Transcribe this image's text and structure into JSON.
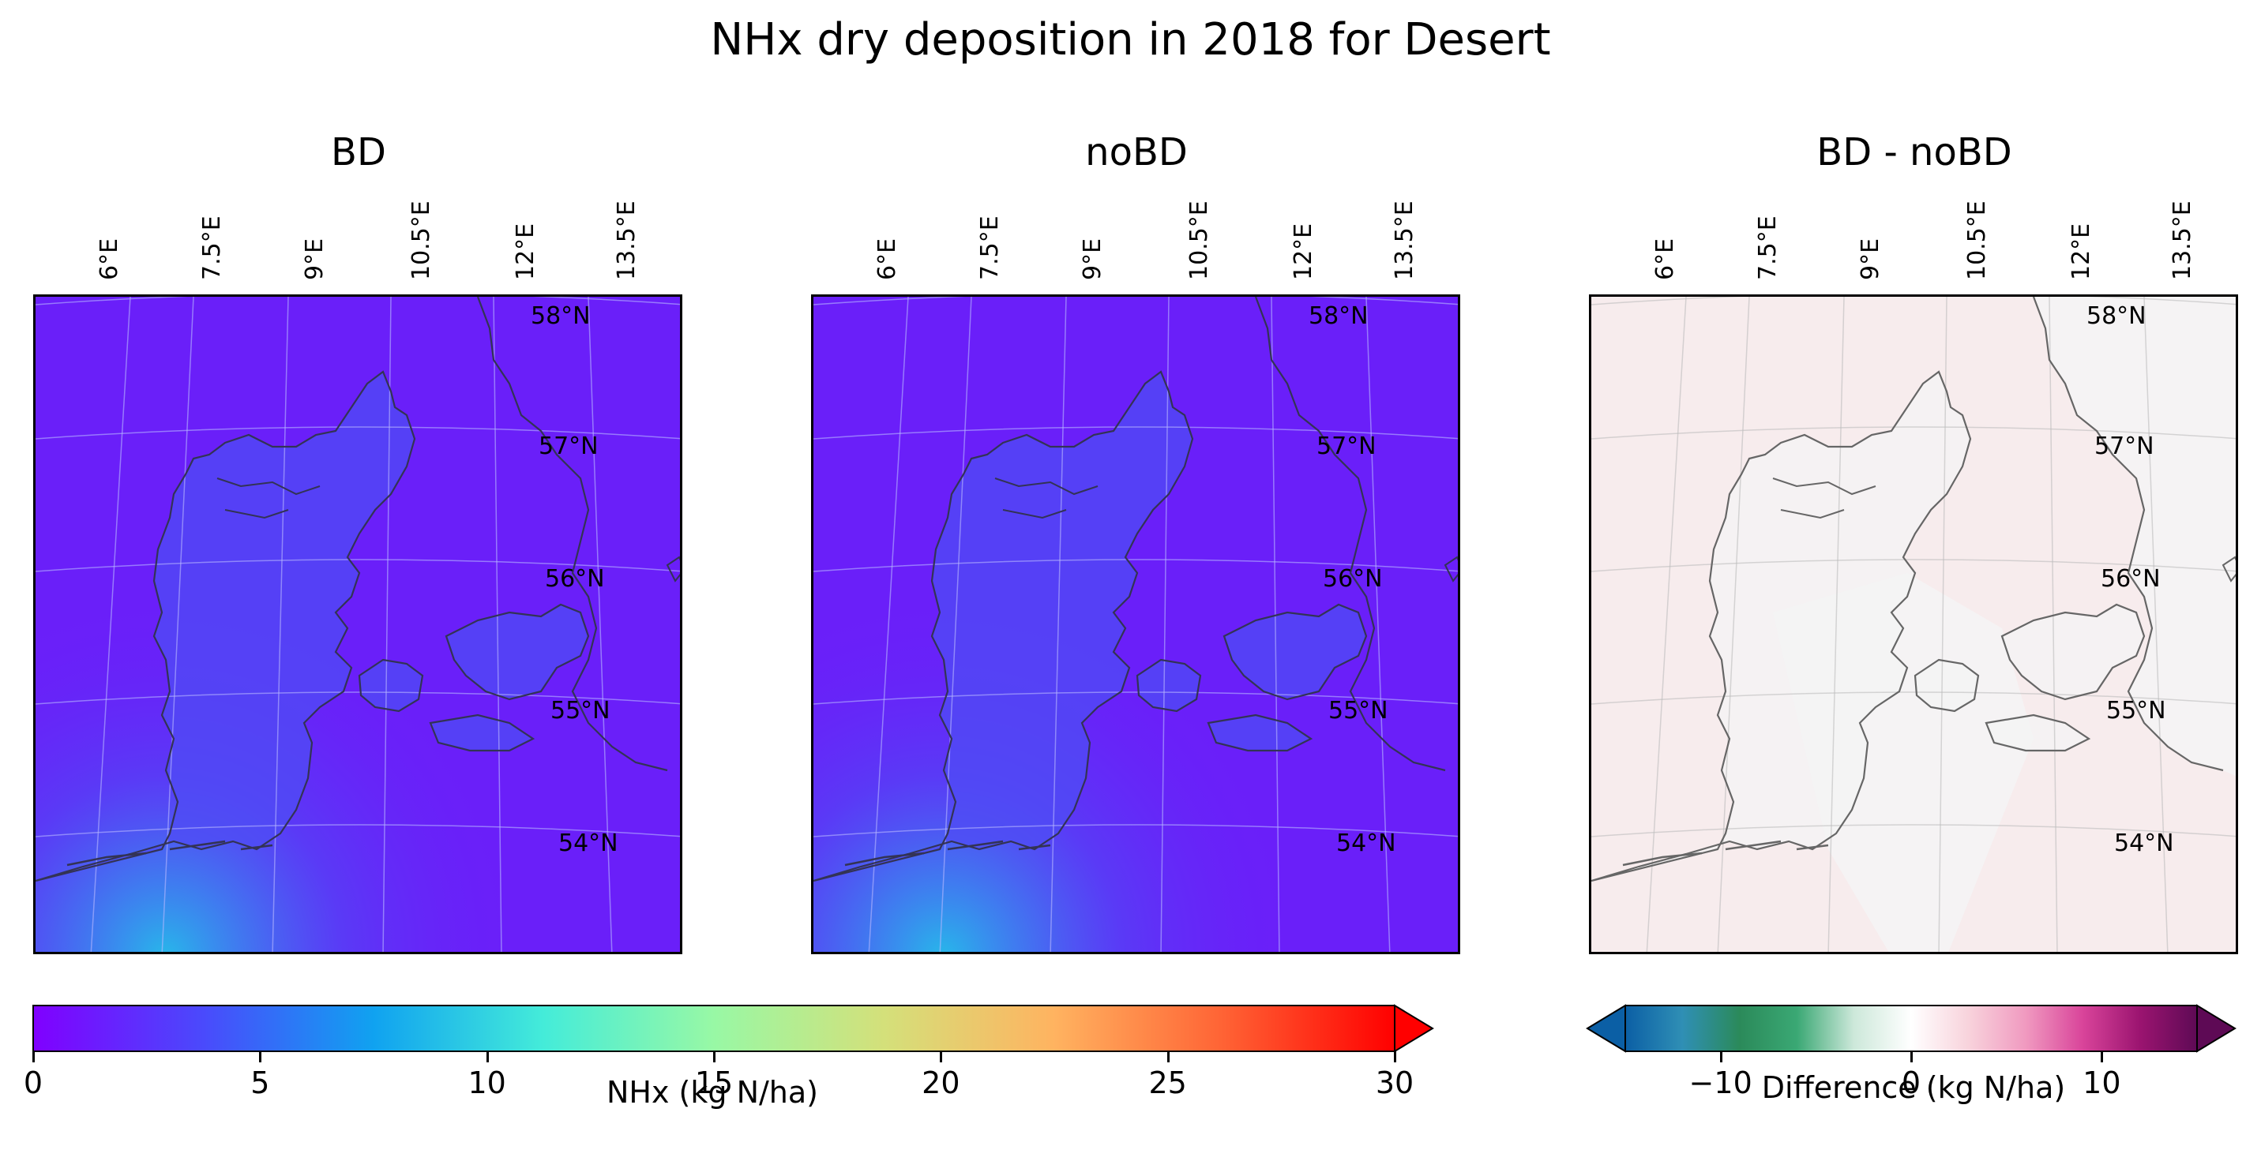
{
  "title": "NHx dry deposition in 2018 for Desert",
  "panels": [
    {
      "title": "BD",
      "kind": "nhx"
    },
    {
      "title": "noBD",
      "kind": "nhx"
    },
    {
      "title": "BD - noBD",
      "kind": "diff"
    }
  ],
  "lon_ticks": [
    "6°E",
    "7.5°E",
    "9°E",
    "10.5°E",
    "12°E",
    "13.5°E"
  ],
  "lat_ticks": [
    "58°N",
    "57°N",
    "56°N",
    "55°N",
    "54°N"
  ],
  "colorbars": {
    "nhx": {
      "label": "NHx (kg N/ha)",
      "min": 0,
      "max": 30,
      "extend": "max",
      "ticks": [
        "0",
        "5",
        "10",
        "15",
        "20",
        "25",
        "30"
      ],
      "colormap": "rainbow",
      "colors": [
        "#8000ff",
        "#4a4afc",
        "#10a2f0",
        "#44ecd9",
        "#98f8a5",
        "#d4e07a",
        "#ffb360",
        "#ff6234",
        "#ff0000"
      ]
    },
    "diff": {
      "label": "Difference (kg N/ha)",
      "min": -15,
      "max": 15,
      "extend": "both",
      "ticks": [
        "−10",
        "0",
        "10"
      ],
      "tick_values": [
        -10,
        0,
        10
      ],
      "colormap": "diverging",
      "colors": [
        "#0b5fa5",
        "#2f8fb5",
        "#2b8a5a",
        "#3aa874",
        "#cde8da",
        "#ffffff",
        "#f8d3dc",
        "#f09ac0",
        "#d9449a",
        "#9b1470",
        "#5e0a55"
      ]
    }
  },
  "maps": {
    "nhx_background": "#6a1ff9",
    "nhx_land": "#4f4cf4",
    "nhx_high": "#20c8e8",
    "diff_background": "#f7eced",
    "diff_land": "#f4f4f4",
    "coastline_color_nhx": "#333355",
    "coastline_color_diff": "#666666"
  }
}
